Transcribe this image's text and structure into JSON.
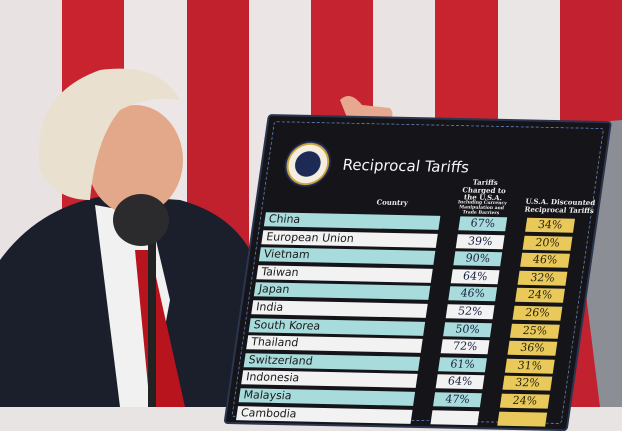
{
  "board": {
    "title": "Reciprocal Tariffs",
    "col_country": "Country",
    "col_charged": "Tariffs Charged to the U.S.A.",
    "col_charged_note": "Including Currency Manipulation and Trade Barriers",
    "col_discounted": "U.S.A. Discounted Reciprocal Tariffs",
    "colors": {
      "teal_row": "#a8dcdc",
      "white_row": "#f2f2f2",
      "yellow": "#e9c95a",
      "board": "#141419"
    },
    "rows": [
      {
        "country": "China",
        "charged": "67%",
        "discounted": "34%"
      },
      {
        "country": "European Union",
        "charged": "39%",
        "discounted": "20%"
      },
      {
        "country": "Vietnam",
        "charged": "90%",
        "discounted": "46%"
      },
      {
        "country": "Taiwan",
        "charged": "64%",
        "discounted": "32%"
      },
      {
        "country": "Japan",
        "charged": "46%",
        "discounted": "24%"
      },
      {
        "country": "India",
        "charged": "52%",
        "discounted": "26%"
      },
      {
        "country": "South Korea",
        "charged": "50%",
        "discounted": "25%"
      },
      {
        "country": "Thailand",
        "charged": "72%",
        "discounted": "36%"
      },
      {
        "country": "Switzerland",
        "charged": "61%",
        "discounted": "31%"
      },
      {
        "country": "Indonesia",
        "charged": "64%",
        "discounted": "32%"
      },
      {
        "country": "Malaysia",
        "charged": "47%",
        "discounted": "24%"
      },
      {
        "country": "Cambodia",
        "charged": "",
        "discounted": ""
      }
    ]
  }
}
